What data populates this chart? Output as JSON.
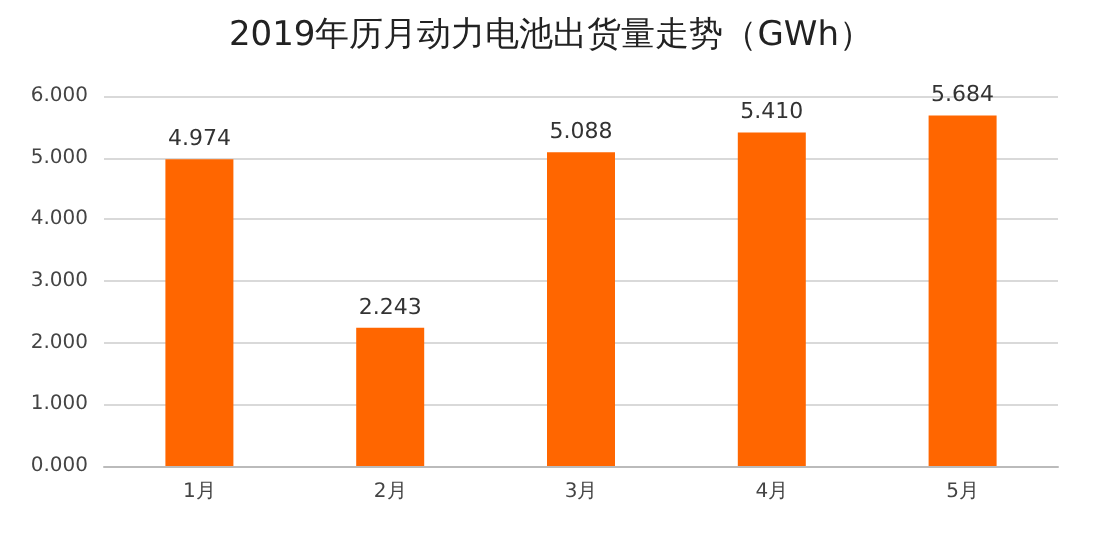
{
  "chart_data": {
    "type": "bar",
    "title": "2019年历月动力电池出货量走势（GWh）",
    "categories": [
      "1月",
      "2月",
      "3月",
      "4月",
      "5月"
    ],
    "values": [
      4.974,
      2.243,
      5.088,
      5.41,
      5.684
    ],
    "value_labels": [
      "4.974",
      "2.243",
      "5.088",
      "5.410",
      "5.684"
    ],
    "color": "#ff6600",
    "ylim": [
      0,
      6
    ],
    "yticks": [
      {
        "value": 0,
        "label": "0.000"
      },
      {
        "value": 1,
        "label": "1.000"
      },
      {
        "value": 2,
        "label": "2.000"
      },
      {
        "value": 3,
        "label": "3.000"
      },
      {
        "value": 4,
        "label": "4.000"
      },
      {
        "value": 5,
        "label": "5.000"
      },
      {
        "value": 6,
        "label": "6.000"
      }
    ],
    "grid": "y"
  }
}
